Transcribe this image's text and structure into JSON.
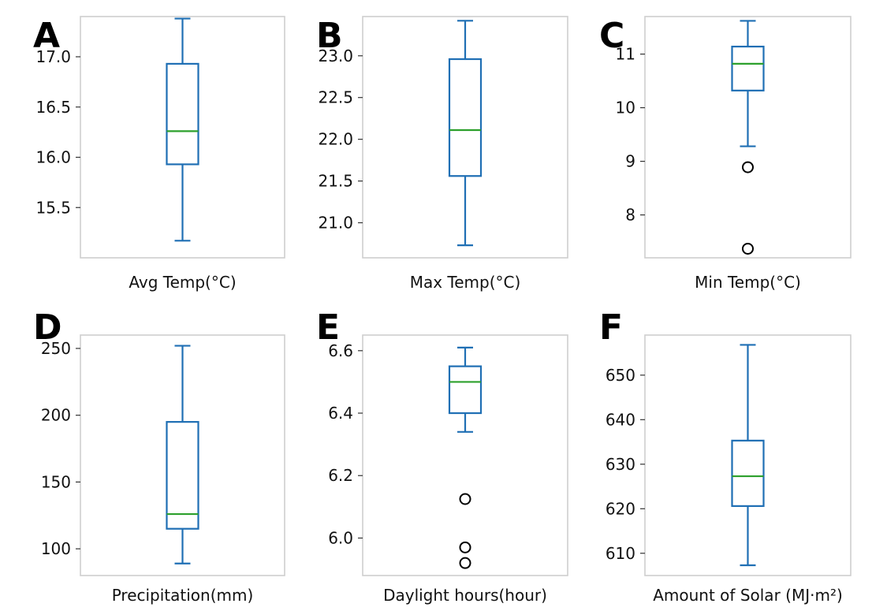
{
  "chart_data": [
    {
      "type": "box",
      "panel": "A",
      "xlabel": "Avg Temp(°C)",
      "ylim": [
        15.0,
        17.4
      ],
      "yticks": [
        15.5,
        16.0,
        16.5,
        17.0
      ],
      "ytick_labels": [
        "15.5",
        "16.0",
        "16.5",
        "17.0"
      ],
      "whisker_low": 15.17,
      "q1": 15.93,
      "median": 16.26,
      "q3": 16.93,
      "whisker_high": 17.38,
      "outliers": []
    },
    {
      "type": "box",
      "panel": "B",
      "xlabel": "Max Temp(°C)",
      "ylim": [
        20.58,
        23.47
      ],
      "yticks": [
        21.0,
        21.5,
        22.0,
        22.5,
        23.0
      ],
      "ytick_labels": [
        "21.0",
        "21.5",
        "22.0",
        "22.5",
        "23.0"
      ],
      "whisker_low": 20.73,
      "q1": 21.56,
      "median": 22.11,
      "q3": 22.96,
      "whisker_high": 23.42,
      "outliers": []
    },
    {
      "type": "box",
      "panel": "C",
      "xlabel": "Min Temp(°C)",
      "ylim": [
        7.2,
        11.7
      ],
      "yticks": [
        8,
        9,
        10,
        11
      ],
      "ytick_labels": [
        "8",
        "9",
        "10",
        "11"
      ],
      "whisker_low": 9.28,
      "q1": 10.32,
      "median": 10.82,
      "q3": 11.14,
      "whisker_high": 11.62,
      "outliers": [
        8.89,
        7.37
      ]
    },
    {
      "type": "box",
      "panel": "D",
      "xlabel": "Precipitation(mm)",
      "ylim": [
        80,
        260
      ],
      "yticks": [
        100,
        150,
        200,
        250
      ],
      "ytick_labels": [
        "100",
        "150",
        "200",
        "250"
      ],
      "whisker_low": 89,
      "q1": 115,
      "median": 126,
      "q3": 195,
      "whisker_high": 252,
      "outliers": []
    },
    {
      "type": "box",
      "panel": "E",
      "xlabel": "Daylight hours(hour)",
      "ylim": [
        5.88,
        6.65
      ],
      "yticks": [
        6.0,
        6.2,
        6.4,
        6.6
      ],
      "ytick_labels": [
        "6.0",
        "6.2",
        "6.4",
        "6.6"
      ],
      "whisker_low": 6.34,
      "q1": 6.4,
      "median": 6.5,
      "q3": 6.55,
      "whisker_high": 6.61,
      "outliers": [
        6.125,
        5.97,
        5.92
      ]
    },
    {
      "type": "box",
      "panel": "F",
      "xlabel": "Amount of Solar (MJ·m²)",
      "ylim": [
        605,
        659
      ],
      "yticks": [
        610,
        620,
        630,
        640,
        650
      ],
      "ytick_labels": [
        "610",
        "620",
        "630",
        "640",
        "650"
      ],
      "whisker_low": 607.3,
      "q1": 620.6,
      "median": 627.3,
      "q3": 635.3,
      "whisker_high": 656.8,
      "outliers": []
    }
  ],
  "colors": {
    "box": "#1f6fb4",
    "median": "#2ca02c",
    "outlier": "#000000",
    "frame": "#cfcfcf"
  }
}
